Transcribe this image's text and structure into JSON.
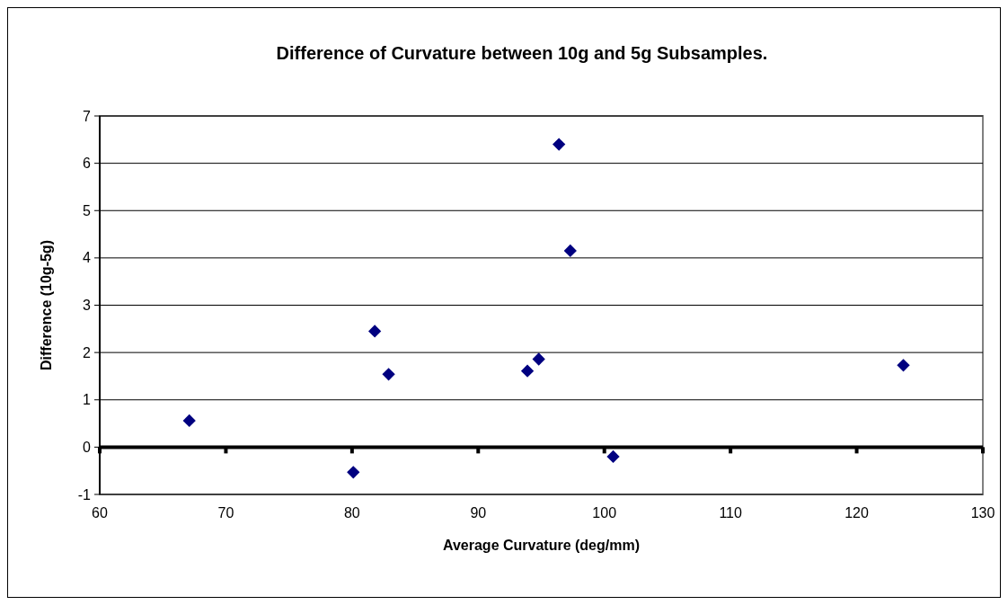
{
  "chart_data": {
    "type": "scatter",
    "title": "Difference of Curvature between 10g and 5g Subsamples.",
    "xlabel": "Average Curvature (deg/mm)",
    "ylabel": "Difference (10g-5g)",
    "x": [
      67.1,
      80.1,
      81.8,
      82.9,
      93.9,
      94.8,
      96.4,
      97.3,
      100.7,
      123.7
    ],
    "series": [
      {
        "color": "#000080",
        "values": [
          0.56,
          -0.53,
          2.45,
          1.54,
          1.61,
          1.86,
          6.4,
          4.15,
          -0.2,
          1.73
        ]
      }
    ],
    "xlim": [
      60,
      130
    ],
    "xticks": [
      60,
      70,
      80,
      90,
      100,
      110,
      120,
      130
    ],
    "ylim": [
      -1,
      7
    ],
    "yticks": [
      -1,
      0,
      1,
      2,
      3,
      4,
      5,
      6,
      7
    ],
    "grid": "y",
    "marker": "diamond"
  }
}
